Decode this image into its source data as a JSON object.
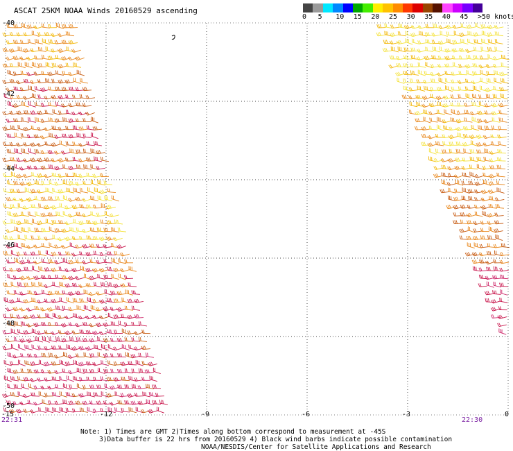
{
  "title": "ASCAT 25KM NOAA Winds 20160529 ascending",
  "legend": {
    "colors": [
      "#444444",
      "#9a9a9a",
      "#00e8ff",
      "#0088ff",
      "#0000ff",
      "#00a800",
      "#44ee00",
      "#ffee00",
      "#ffc200",
      "#ff8c00",
      "#ff3800",
      "#dd0000",
      "#994400",
      "#551100",
      "#ff44ff",
      "#cc00ff",
      "#7700ff",
      "#440099"
    ],
    "labels": [
      "0",
      "5",
      "10",
      "15",
      "20",
      "25",
      "30",
      "35",
      "40",
      "45",
      ">50 knots"
    ]
  },
  "axes": {
    "x_ticks": [
      "-15",
      "-12",
      "-9",
      "-6",
      "-3",
      "0"
    ],
    "y_ticks": [
      "-40",
      "-42",
      "-44",
      "-46",
      "-48",
      "-50"
    ],
    "x_range": [
      -15,
      0
    ],
    "y_range": [
      -50,
      -40
    ],
    "grid": true
  },
  "times": {
    "left": "22:31",
    "right": "22:30"
  },
  "notes": [
    "Note: 1) Times are GMT 2)Times along bottom correspond to measurement at -45S",
    "3)Data buffer is 22 hrs from 20160529 4) Black wind barbs indicate possible contamination",
    "NOAA/NESDIS/Center for Satellite Applications and Research"
  ],
  "swaths": [
    {
      "name": "left",
      "lat_top": -40,
      "lat_bottom": -50,
      "west_lon": -15,
      "east_lon_top": -12.9,
      "east_lon_bottom": -10.1
    },
    {
      "name": "right",
      "lat_top": -40,
      "lat_bottom": -48,
      "west_lon_top": -4.0,
      "west_lon_bottom": -0.2,
      "east_lon": 0
    }
  ],
  "colors": {
    "yellow": "#f4e23a",
    "gold": "#f2b705",
    "orange": "#e8861a",
    "brownOrange": "#c75a10",
    "crimson": "#c8144a",
    "magenta": "#cc2266"
  }
}
